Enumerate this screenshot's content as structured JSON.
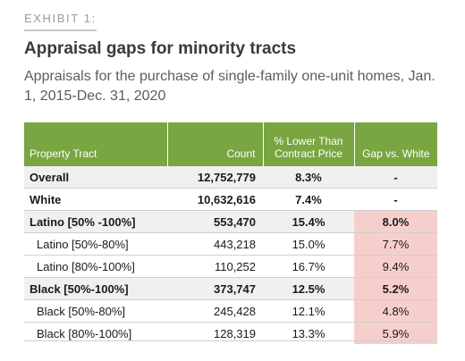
{
  "exhibit_label": "EXHIBIT 1:",
  "title": "Appraisal gaps for minority tracts",
  "subtitle": "Appraisals for the purchase of single-family one-unit homes, Jan. 1, 2015-Dec. 31, 2020",
  "table": {
    "headers": {
      "property_tract": "Property Tract",
      "count": "Count",
      "pct_lower": "% Lower Than Contract Price",
      "gap": "Gap vs. White"
    },
    "rows": [
      {
        "tract": "Overall",
        "count": "12,752,779",
        "pct": "8.3%",
        "gap": "-"
      },
      {
        "tract": "White",
        "count": "10,632,616",
        "pct": "7.4%",
        "gap": "-"
      },
      {
        "tract": "Latino [50% -100%]",
        "count": "553,470",
        "pct": "15.4%",
        "gap": "8.0%"
      },
      {
        "tract": "Latino [50%-80%]",
        "count": "443,218",
        "pct": "15.0%",
        "gap": "7.7%"
      },
      {
        "tract": "Latino [80%-100%]",
        "count": "110,252",
        "pct": "16.7%",
        "gap": "9.4%"
      },
      {
        "tract": "Black [50%-100%]",
        "count": "373,747",
        "pct": "12.5%",
        "gap": "5.2%"
      },
      {
        "tract": "Black [50%-80%]",
        "count": "245,428",
        "pct": "12.1%",
        "gap": "4.8%"
      },
      {
        "tract": "Black [80%-100%]",
        "count": "128,319",
        "pct": "13.3%",
        "gap": "5.9%"
      }
    ]
  },
  "colors": {
    "header_green": "#79a641",
    "gap_highlight": "#f6cfcc",
    "row_shade": "#f0f0f0"
  }
}
